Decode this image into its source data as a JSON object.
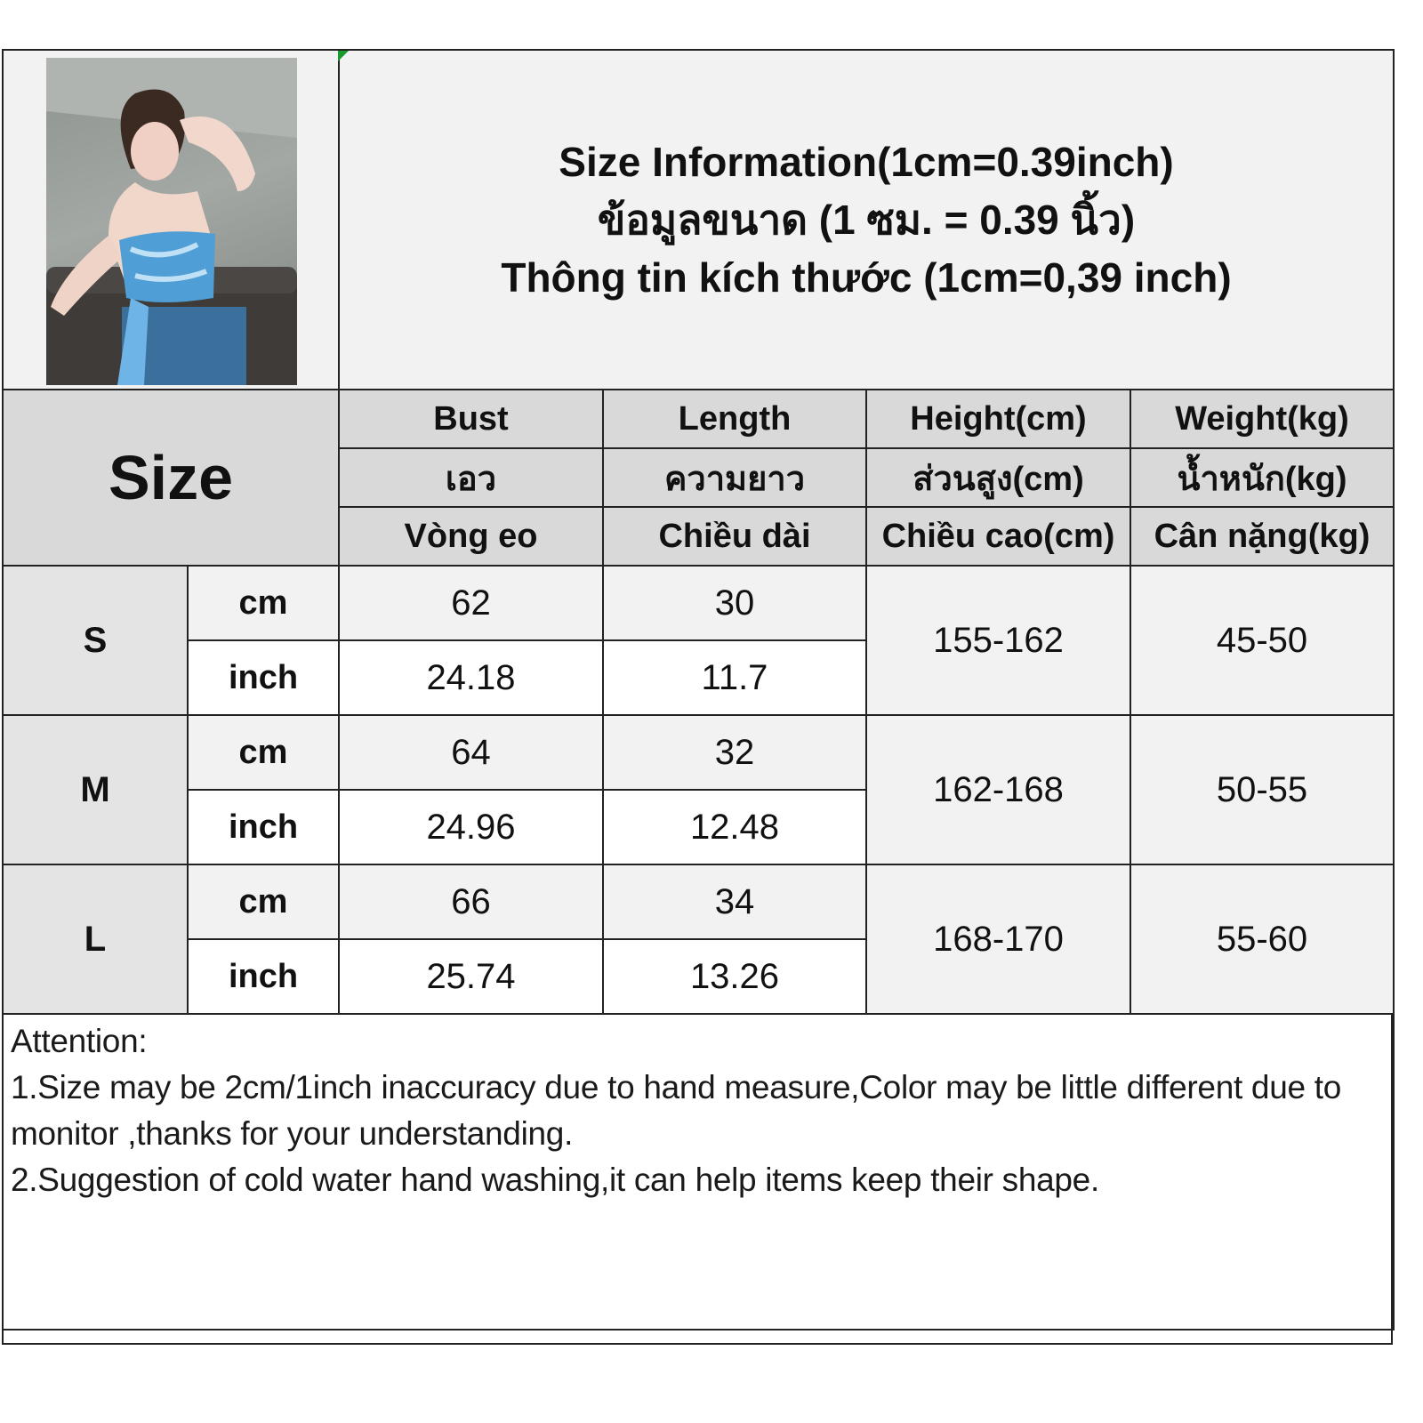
{
  "title": {
    "line1": "Size Information(1cm=0.39inch)",
    "line2": "ข้อมูลขนาด (1 ซม. = 0.39 นิ้ว)",
    "line3": "Thông tin kích thước (1cm=0,39 inch)"
  },
  "size_label": "Size",
  "columns": [
    {
      "en": "Bust",
      "th": "เอว",
      "vi": "Vòng eo"
    },
    {
      "en": "Length",
      "th": "ความยาว",
      "vi": "Chiều dài"
    },
    {
      "en": "Height(cm)",
      "th": "ส่วนสูง(cm)",
      "vi": "Chiều cao(cm)"
    },
    {
      "en": "Weight(kg)",
      "th": "น้ำหนัก(kg)",
      "vi": "Cân nặng(kg)"
    }
  ],
  "units": {
    "cm": "cm",
    "inch": "inch"
  },
  "rows": [
    {
      "size": "S",
      "cm": {
        "bust": "62",
        "length": "30"
      },
      "inch": {
        "bust": "24.18",
        "length": "11.7"
      },
      "height": "155-162",
      "weight": "45-50"
    },
    {
      "size": "M",
      "cm": {
        "bust": "64",
        "length": "32"
      },
      "inch": {
        "bust": "24.96",
        "length": "12.48"
      },
      "height": "162-168",
      "weight": "50-55"
    },
    {
      "size": "L",
      "cm": {
        "bust": "66",
        "length": "34"
      },
      "inch": {
        "bust": "25.74",
        "length": "13.26"
      },
      "height": "168-170",
      "weight": "55-60"
    }
  ],
  "notes": {
    "heading": "Attention:",
    "line1": "1.Size may be 2cm/1inch inaccuracy due to hand measure,Color may be little different due to monitor ,thanks for your understanding.",
    "line2": "2.Suggestion of cold water hand washing,it can help items keep their shape."
  },
  "colors": {
    "header_bg": "#d9d9d9",
    "light_bg": "#f2f2f2",
    "border": "#222222",
    "top_blue": "#4f9fd6"
  }
}
